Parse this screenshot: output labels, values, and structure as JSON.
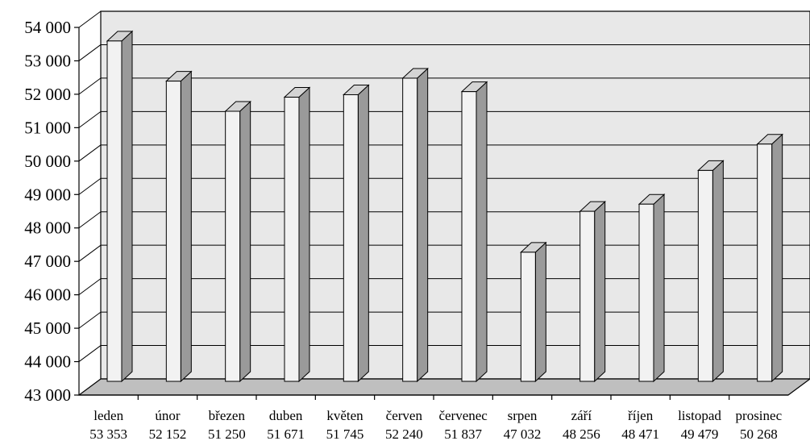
{
  "chart_data": {
    "type": "bar",
    "categories": [
      "leden",
      "únor",
      "březen",
      "duben",
      "květen",
      "červen",
      "červenec",
      "srpen",
      "září",
      "říjen",
      "listopad",
      "prosinec"
    ],
    "values": [
      53353,
      52152,
      51250,
      51671,
      51745,
      52240,
      51837,
      47032,
      48256,
      48471,
      49479,
      50268
    ],
    "value_labels": [
      "53 353",
      "52 152",
      "51 250",
      "51 671",
      "51 745",
      "52 240",
      "51 837",
      "47 032",
      "48 256",
      "48 471",
      "49 479",
      "50 268"
    ],
    "yticks": [
      "43 000",
      "44 000",
      "45 000",
      "46 000",
      "47 000",
      "48 000",
      "49 000",
      "50 000",
      "51 000",
      "52 000",
      "53 000",
      "54 000"
    ],
    "ylim": [
      43000,
      54000
    ],
    "grid": true,
    "style": "3d-bars",
    "colors": {
      "bar_front": "#f2f2f2",
      "bar_side": "#9a9a9a",
      "bar_top": "#d4d4d4",
      "wall": "#e8e8e8",
      "floor": "#bfbfbf",
      "grid": "#000000"
    }
  }
}
